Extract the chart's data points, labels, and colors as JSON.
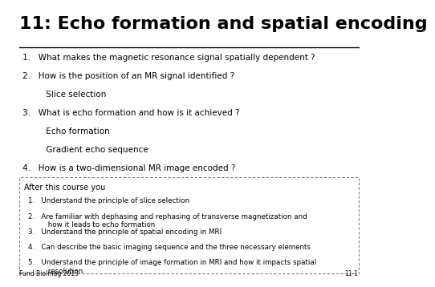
{
  "title": "11: Echo formation and spatial encoding",
  "title_fontsize": 16,
  "title_font": "sans-serif",
  "title_weight": "bold",
  "main_questions": [
    "1.   What makes the magnetic resonance signal spatially dependent ?",
    "2.   How is the position of an MR signal identified ?",
    "         Slice selection",
    "3.   What is echo formation and how is it achieved ?",
    "         Echo formation",
    "         Gradient echo sequence",
    "4.   How is a two-dimensional MR image encoded ?"
  ],
  "box_title": "After this course you",
  "box_items": [
    "1.   Understand the principle of slice selection",
    "2.   Are familiar with dephasing and rephasing of transverse magnetization and\n         how it leads to echo formation",
    "3.   Understand the principle of spatial encoding in MRI",
    "4.   Can describe the basic imaging sequence and the three necessary elements",
    "5.   Understand the principle of image formation in MRI and how it impacts spatial\n         resolution"
  ],
  "footer": "Fund BioImag 2013",
  "slide_num": "11-1"
}
